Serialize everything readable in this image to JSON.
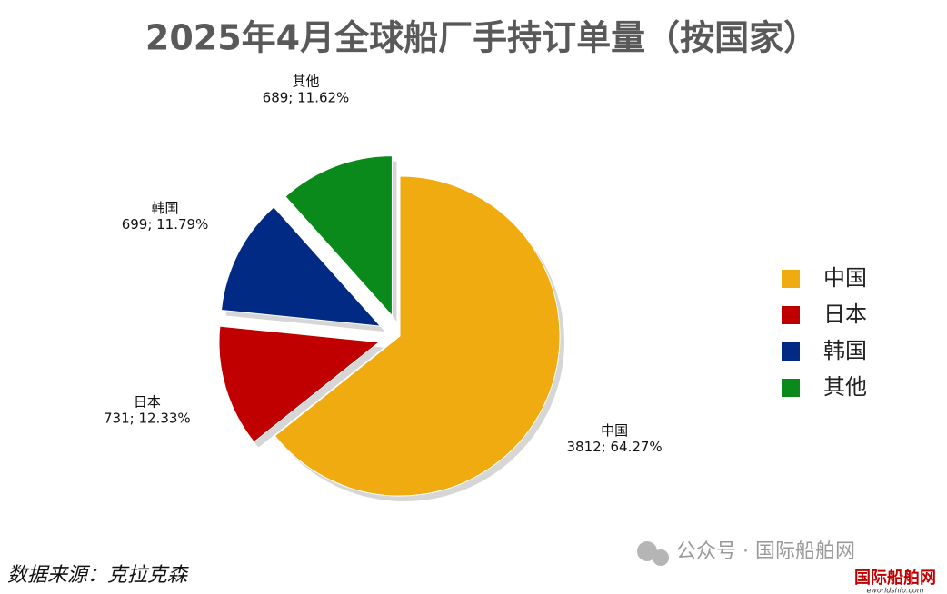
{
  "chart_data": {
    "type": "pie",
    "title": "2025年4月全球船厂手持订单量（按国家）",
    "categories": [
      "中国",
      "日本",
      "韩国",
      "其他"
    ],
    "values": [
      3812,
      731,
      699,
      689
    ],
    "value_labels": [
      "3812; 64.27%",
      "731; 12.33%",
      "699; 11.79%",
      "689; 11.62%"
    ],
    "colors": [
      "#f0ab10",
      "#c00000",
      "#002a84",
      "#0a8a1a"
    ],
    "legend": "right",
    "source": "数据来源：克拉克森",
    "watermark": "公众号 · 国际船舶网",
    "logo": "国际船舶网",
    "logo_url": "eworldship.com"
  }
}
